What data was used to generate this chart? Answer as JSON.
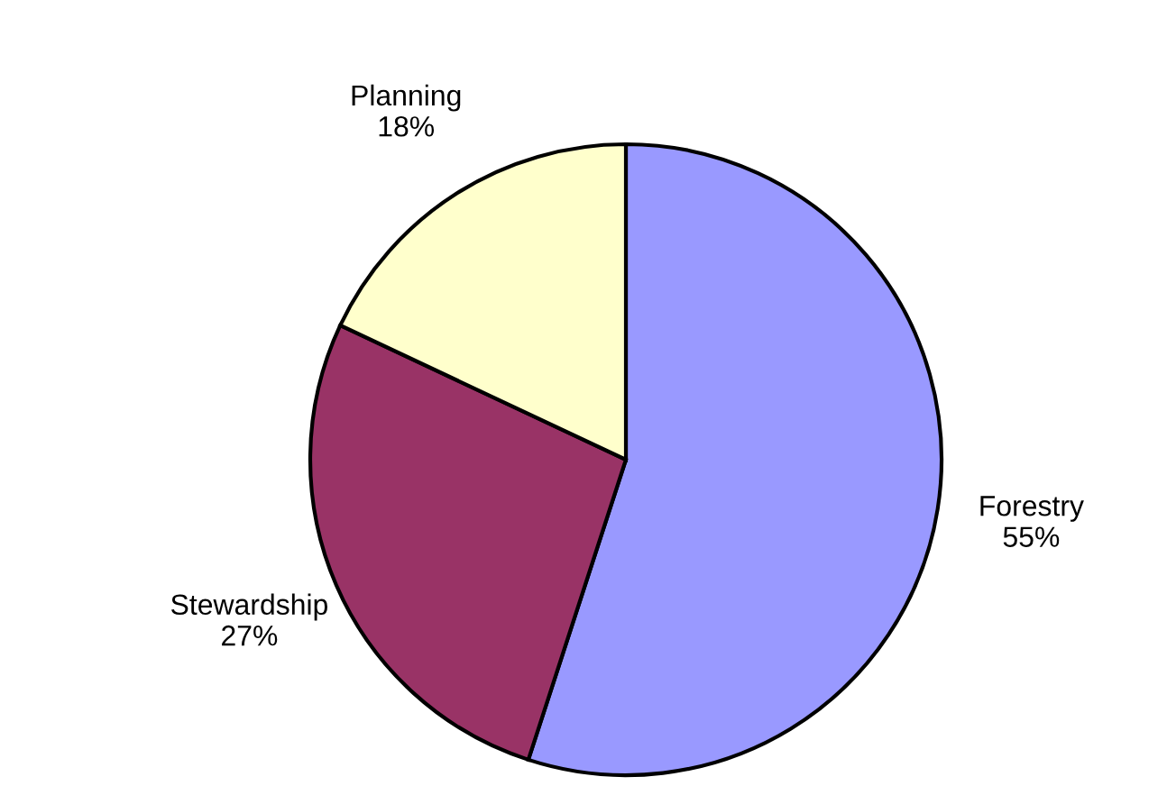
{
  "chart_data": {
    "type": "pie",
    "categories": [
      "Forestry",
      "Stewardship",
      "Planning"
    ],
    "values": [
      55,
      27,
      18
    ],
    "colors": [
      "#9999ff",
      "#993366",
      "#ffffcc"
    ],
    "value_labels": [
      "55%",
      "27%",
      "18%"
    ]
  }
}
